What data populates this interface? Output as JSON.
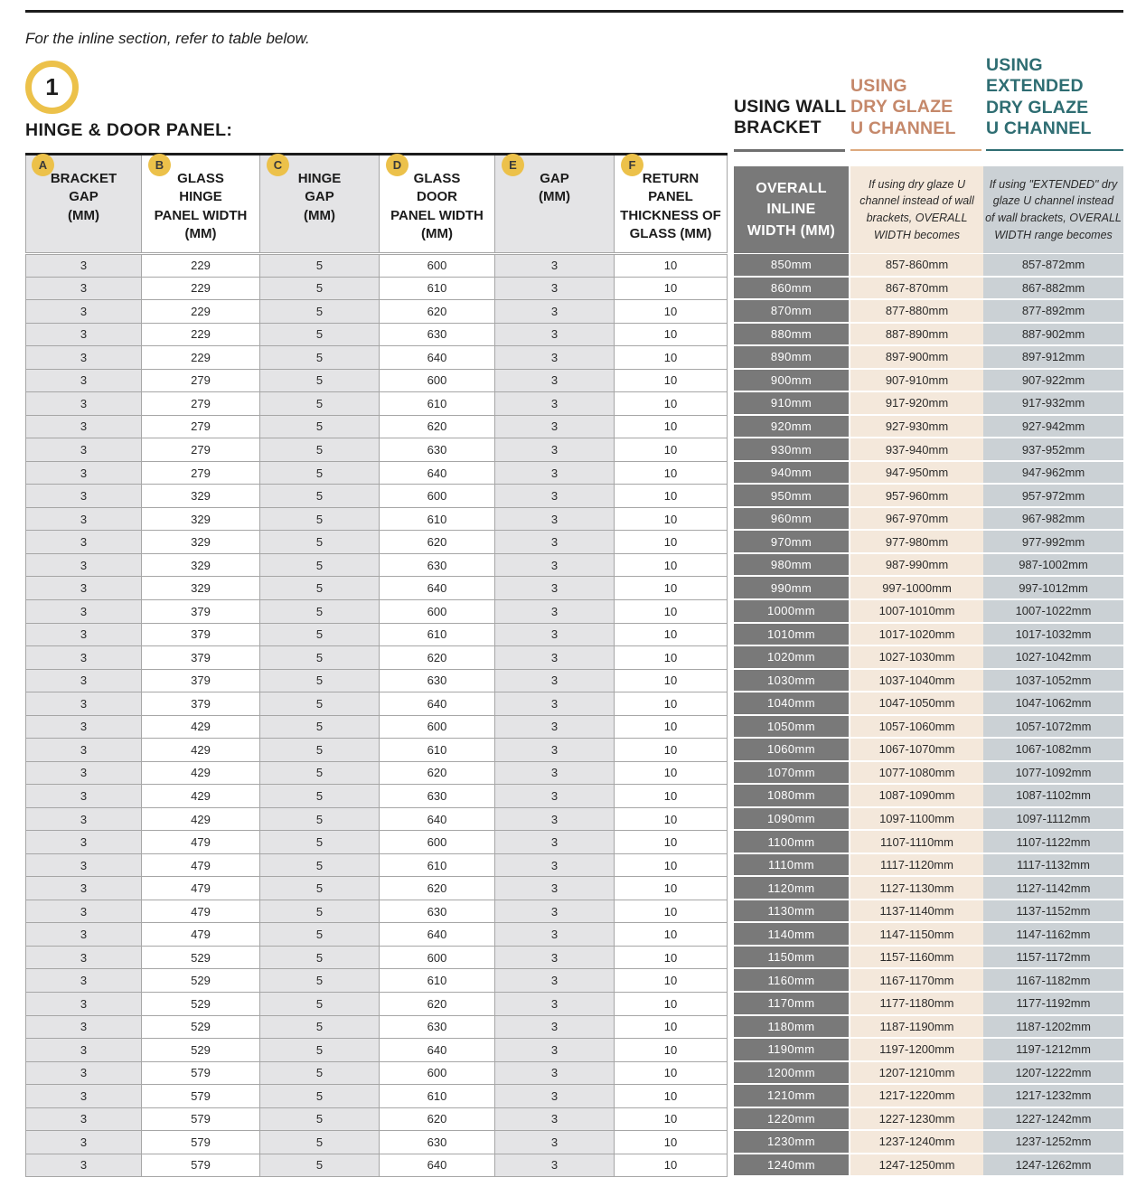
{
  "page": {
    "intro": "For the inline section, refer to table below.",
    "step_number": "1",
    "section_title": "HINGE & DOOR PANEL:"
  },
  "header_groups": {
    "wall_bracket": "USING WALL\nBRACKET",
    "dry_glaze": "USING\nDRY GLAZE\nU CHANNEL",
    "extended_dry_glaze": "USING\nEXTENDED\nDRY GLAZE\nU CHANNEL"
  },
  "columns": [
    {
      "badge": "A",
      "label": "BRACKET\nGAP\n(MM)"
    },
    {
      "badge": "B",
      "label": "GLASS\nHINGE\nPANEL WIDTH\n(MM)"
    },
    {
      "badge": "C",
      "label": "HINGE\nGAP\n(MM)"
    },
    {
      "badge": "D",
      "label": "GLASS\nDOOR\nPANEL WIDTH\n(MM)"
    },
    {
      "badge": "E",
      "label": "GAP\n(MM)"
    },
    {
      "badge": "F",
      "label": "RETURN\nPANEL\nTHICKNESS OF\nGLASS (MM)"
    }
  ],
  "wide_columns": {
    "overall_label": "OVERALL\nINLINE\nWIDTH (MM)",
    "dry_glaze_note": "If using dry glaze U\nchannel instead of wall\nbrackets, OVERALL\nWIDTH becomes",
    "extended_note": "If using \"EXTENDED\" dry\nglaze U channel instead\nof wall brackets, OVERALL\nWIDTH range becomes"
  },
  "colors": {
    "badge_yellow": "#ECC14A",
    "dark_gray_column": "#797979",
    "beige_column": "#F4E8DB",
    "blue_gray_column": "#CBD1D5",
    "shaded_cell": "#E4E4E6",
    "orange_heading": "#C5886A",
    "teal_heading": "#2E6D72"
  },
  "table": {
    "rows": [
      [
        "3",
        "229",
        "5",
        "600",
        "3",
        "10",
        "850mm",
        "857-860mm",
        "857-872mm"
      ],
      [
        "3",
        "229",
        "5",
        "610",
        "3",
        "10",
        "860mm",
        "867-870mm",
        "867-882mm"
      ],
      [
        "3",
        "229",
        "5",
        "620",
        "3",
        "10",
        "870mm",
        "877-880mm",
        "877-892mm"
      ],
      [
        "3",
        "229",
        "5",
        "630",
        "3",
        "10",
        "880mm",
        "887-890mm",
        "887-902mm"
      ],
      [
        "3",
        "229",
        "5",
        "640",
        "3",
        "10",
        "890mm",
        "897-900mm",
        "897-912mm"
      ],
      [
        "3",
        "279",
        "5",
        "600",
        "3",
        "10",
        "900mm",
        "907-910mm",
        "907-922mm"
      ],
      [
        "3",
        "279",
        "5",
        "610",
        "3",
        "10",
        "910mm",
        "917-920mm",
        "917-932mm"
      ],
      [
        "3",
        "279",
        "5",
        "620",
        "3",
        "10",
        "920mm",
        "927-930mm",
        "927-942mm"
      ],
      [
        "3",
        "279",
        "5",
        "630",
        "3",
        "10",
        "930mm",
        "937-940mm",
        "937-952mm"
      ],
      [
        "3",
        "279",
        "5",
        "640",
        "3",
        "10",
        "940mm",
        "947-950mm",
        "947-962mm"
      ],
      [
        "3",
        "329",
        "5",
        "600",
        "3",
        "10",
        "950mm",
        "957-960mm",
        "957-972mm"
      ],
      [
        "3",
        "329",
        "5",
        "610",
        "3",
        "10",
        "960mm",
        "967-970mm",
        "967-982mm"
      ],
      [
        "3",
        "329",
        "5",
        "620",
        "3",
        "10",
        "970mm",
        "977-980mm",
        "977-992mm"
      ],
      [
        "3",
        "329",
        "5",
        "630",
        "3",
        "10",
        "980mm",
        "987-990mm",
        "987-1002mm"
      ],
      [
        "3",
        "329",
        "5",
        "640",
        "3",
        "10",
        "990mm",
        "997-1000mm",
        "997-1012mm"
      ],
      [
        "3",
        "379",
        "5",
        "600",
        "3",
        "10",
        "1000mm",
        "1007-1010mm",
        "1007-1022mm"
      ],
      [
        "3",
        "379",
        "5",
        "610",
        "3",
        "10",
        "1010mm",
        "1017-1020mm",
        "1017-1032mm"
      ],
      [
        "3",
        "379",
        "5",
        "620",
        "3",
        "10",
        "1020mm",
        "1027-1030mm",
        "1027-1042mm"
      ],
      [
        "3",
        "379",
        "5",
        "630",
        "3",
        "10",
        "1030mm",
        "1037-1040mm",
        "1037-1052mm"
      ],
      [
        "3",
        "379",
        "5",
        "640",
        "3",
        "10",
        "1040mm",
        "1047-1050mm",
        "1047-1062mm"
      ],
      [
        "3",
        "429",
        "5",
        "600",
        "3",
        "10",
        "1050mm",
        "1057-1060mm",
        "1057-1072mm"
      ],
      [
        "3",
        "429",
        "5",
        "610",
        "3",
        "10",
        "1060mm",
        "1067-1070mm",
        "1067-1082mm"
      ],
      [
        "3",
        "429",
        "5",
        "620",
        "3",
        "10",
        "1070mm",
        "1077-1080mm",
        "1077-1092mm"
      ],
      [
        "3",
        "429",
        "5",
        "630",
        "3",
        "10",
        "1080mm",
        "1087-1090mm",
        "1087-1102mm"
      ],
      [
        "3",
        "429",
        "5",
        "640",
        "3",
        "10",
        "1090mm",
        "1097-1100mm",
        "1097-1112mm"
      ],
      [
        "3",
        "479",
        "5",
        "600",
        "3",
        "10",
        "1100mm",
        "1107-1110mm",
        "1107-1122mm"
      ],
      [
        "3",
        "479",
        "5",
        "610",
        "3",
        "10",
        "1110mm",
        "1117-1120mm",
        "1117-1132mm"
      ],
      [
        "3",
        "479",
        "5",
        "620",
        "3",
        "10",
        "1120mm",
        "1127-1130mm",
        "1127-1142mm"
      ],
      [
        "3",
        "479",
        "5",
        "630",
        "3",
        "10",
        "1130mm",
        "1137-1140mm",
        "1137-1152mm"
      ],
      [
        "3",
        "479",
        "5",
        "640",
        "3",
        "10",
        "1140mm",
        "1147-1150mm",
        "1147-1162mm"
      ],
      [
        "3",
        "529",
        "5",
        "600",
        "3",
        "10",
        "1150mm",
        "1157-1160mm",
        "1157-1172mm"
      ],
      [
        "3",
        "529",
        "5",
        "610",
        "3",
        "10",
        "1160mm",
        "1167-1170mm",
        "1167-1182mm"
      ],
      [
        "3",
        "529",
        "5",
        "620",
        "3",
        "10",
        "1170mm",
        "1177-1180mm",
        "1177-1192mm"
      ],
      [
        "3",
        "529",
        "5",
        "630",
        "3",
        "10",
        "1180mm",
        "1187-1190mm",
        "1187-1202mm"
      ],
      [
        "3",
        "529",
        "5",
        "640",
        "3",
        "10",
        "1190mm",
        "1197-1200mm",
        "1197-1212mm"
      ],
      [
        "3",
        "579",
        "5",
        "600",
        "3",
        "10",
        "1200mm",
        "1207-1210mm",
        "1207-1222mm"
      ],
      [
        "3",
        "579",
        "5",
        "610",
        "3",
        "10",
        "1210mm",
        "1217-1220mm",
        "1217-1232mm"
      ],
      [
        "3",
        "579",
        "5",
        "620",
        "3",
        "10",
        "1220mm",
        "1227-1230mm",
        "1227-1242mm"
      ],
      [
        "3",
        "579",
        "5",
        "630",
        "3",
        "10",
        "1230mm",
        "1237-1240mm",
        "1237-1252mm"
      ],
      [
        "3",
        "579",
        "5",
        "640",
        "3",
        "10",
        "1240mm",
        "1247-1250mm",
        "1247-1262mm"
      ]
    ]
  }
}
